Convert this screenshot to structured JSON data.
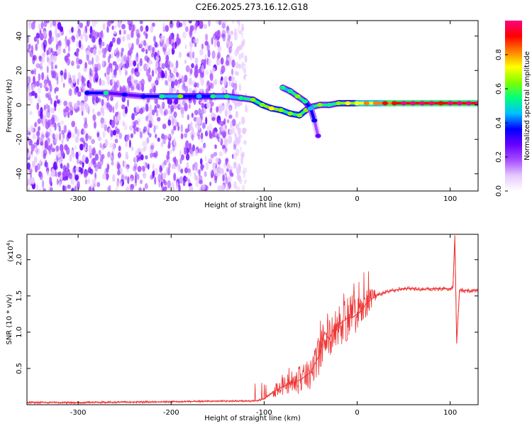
{
  "page_title": "C2E6.2025.273.16.12.G18",
  "chart_data": [
    {
      "type": "heatmap",
      "title": "C2E6.2025.273.16.12.G18",
      "xlabel": "Height of straight line (km)",
      "ylabel": "Frequency (Hz)",
      "xlim": [
        -355,
        130
      ],
      "ylim": [
        -50,
        49
      ],
      "xticks": [
        -300,
        -200,
        -100,
        0,
        100
      ],
      "xtick_labels": [
        "-300",
        "-200",
        "-100",
        "0",
        "100"
      ],
      "yticks": [
        -40,
        -20,
        0,
        20,
        40
      ],
      "ytick_labels": [
        "-40",
        "-20",
        "0",
        "20",
        "40"
      ],
      "colorbar": {
        "label": "Normalized spectral amplitude",
        "range": [
          0,
          1
        ],
        "ticks": [
          0.0,
          0.2,
          0.4,
          0.6,
          0.8
        ],
        "tick_labels": [
          "0.0",
          "0.2",
          "0.4",
          "0.6",
          "0.8"
        ],
        "colors": [
          "#ffffff",
          "#e6c8ff",
          "#a64dff",
          "#6600ff",
          "#0000ff",
          "#00bfff",
          "#00ff7f",
          "#80ff00",
          "#ffff00",
          "#ff8000",
          "#ff0000",
          "#ff0080"
        ]
      },
      "noise_region_x": [
        -355,
        -115
      ],
      "main_trace": [
        {
          "x": -290,
          "y": 7,
          "a": 0.35
        },
        {
          "x": -270,
          "y": 7,
          "a": 0.45
        },
        {
          "x": -250,
          "y": 6,
          "a": 0.3
        },
        {
          "x": -230,
          "y": 5,
          "a": 0.35
        },
        {
          "x": -210,
          "y": 5,
          "a": 0.45
        },
        {
          "x": -190,
          "y": 5,
          "a": 0.55
        },
        {
          "x": -170,
          "y": 5,
          "a": 0.4
        },
        {
          "x": -155,
          "y": 5,
          "a": 0.5
        },
        {
          "x": -140,
          "y": 5,
          "a": 0.45
        },
        {
          "x": -125,
          "y": 4,
          "a": 0.5
        },
        {
          "x": -112,
          "y": 3,
          "a": 0.55
        },
        {
          "x": -102,
          "y": 0,
          "a": 0.6
        },
        {
          "x": -92,
          "y": -2,
          "a": 0.65
        },
        {
          "x": -82,
          "y": -3,
          "a": 0.6
        },
        {
          "x": -72,
          "y": -5,
          "a": 0.55
        },
        {
          "x": -62,
          "y": -6,
          "a": 0.6
        },
        {
          "x": -55,
          "y": -3,
          "a": 0.55
        },
        {
          "x": -48,
          "y": -1,
          "a": 0.5
        },
        {
          "x": -40,
          "y": 0,
          "a": 0.55
        },
        {
          "x": -30,
          "y": 0,
          "a": 0.5
        },
        {
          "x": -20,
          "y": 1,
          "a": 0.6
        },
        {
          "x": -10,
          "y": 1,
          "a": 0.65
        },
        {
          "x": 0,
          "y": 1,
          "a": 0.7
        },
        {
          "x": 10,
          "y": 1,
          "a": 0.75
        },
        {
          "x": 20,
          "y": 1,
          "a": 0.8
        },
        {
          "x": 30,
          "y": 1,
          "a": 0.85
        },
        {
          "x": 40,
          "y": 1,
          "a": 0.9
        },
        {
          "x": 50,
          "y": 1,
          "a": 0.92
        },
        {
          "x": 60,
          "y": 1,
          "a": 0.95
        },
        {
          "x": 70,
          "y": 1,
          "a": 0.95
        },
        {
          "x": 80,
          "y": 1,
          "a": 0.92
        },
        {
          "x": 90,
          "y": 1,
          "a": 0.9
        },
        {
          "x": 100,
          "y": 1,
          "a": 0.92
        },
        {
          "x": 110,
          "y": 1,
          "a": 0.95
        },
        {
          "x": 120,
          "y": 1,
          "a": 0.95
        },
        {
          "x": 130,
          "y": 1,
          "a": 0.95
        }
      ],
      "branch_trace": [
        {
          "x": -80,
          "y": 10,
          "a": 0.45
        },
        {
          "x": -72,
          "y": 8,
          "a": 0.5
        },
        {
          "x": -64,
          "y": 5,
          "a": 0.55
        },
        {
          "x": -56,
          "y": 2,
          "a": 0.5
        },
        {
          "x": -50,
          "y": -2,
          "a": 0.4
        },
        {
          "x": -46,
          "y": -9,
          "a": 0.35
        },
        {
          "x": -42,
          "y": -18,
          "a": 0.2
        }
      ]
    },
    {
      "type": "line",
      "xlabel": "Height of straight line (km)",
      "ylabel": "SNR (10 * v/v)",
      "y_multiplier_label": "(x10",
      "y_multiplier_exponent": "4",
      "y_multiplier_close": ")",
      "xlim": [
        -355,
        130
      ],
      "ylim": [
        0,
        2.35
      ],
      "xticks": [
        -300,
        -200,
        -100,
        0,
        100
      ],
      "xtick_labels": [
        "-300",
        "-200",
        "-100",
        "0",
        "100"
      ],
      "yticks": [
        0.5,
        1.0,
        1.5,
        2.0
      ],
      "ytick_labels": [
        "0.5",
        "1.0",
        "1.5",
        "2.0"
      ],
      "line_color": "#ee3333",
      "series": [
        {
          "name": "SNR",
          "x": [
            -355,
            -300,
            -250,
            -200,
            -150,
            -110,
            -100,
            -90,
            -80,
            -70,
            -60,
            -50,
            -40,
            -35,
            -30,
            -25,
            -20,
            -15,
            -10,
            -5,
            0,
            5,
            10,
            20,
            30,
            40,
            50,
            60,
            70,
            80,
            90,
            100,
            103,
            105,
            107,
            110,
            120,
            130
          ],
          "y": [
            0.03,
            0.03,
            0.035,
            0.04,
            0.05,
            0.05,
            0.08,
            0.18,
            0.25,
            0.3,
            0.35,
            0.45,
            0.7,
            1.0,
            0.9,
            1.05,
            1.1,
            1.15,
            1.2,
            1.2,
            1.25,
            1.3,
            1.4,
            1.5,
            1.55,
            1.58,
            1.6,
            1.6,
            1.59,
            1.6,
            1.6,
            1.6,
            1.62,
            2.33,
            0.85,
            1.58,
            1.57,
            1.58
          ]
        }
      ]
    }
  ]
}
